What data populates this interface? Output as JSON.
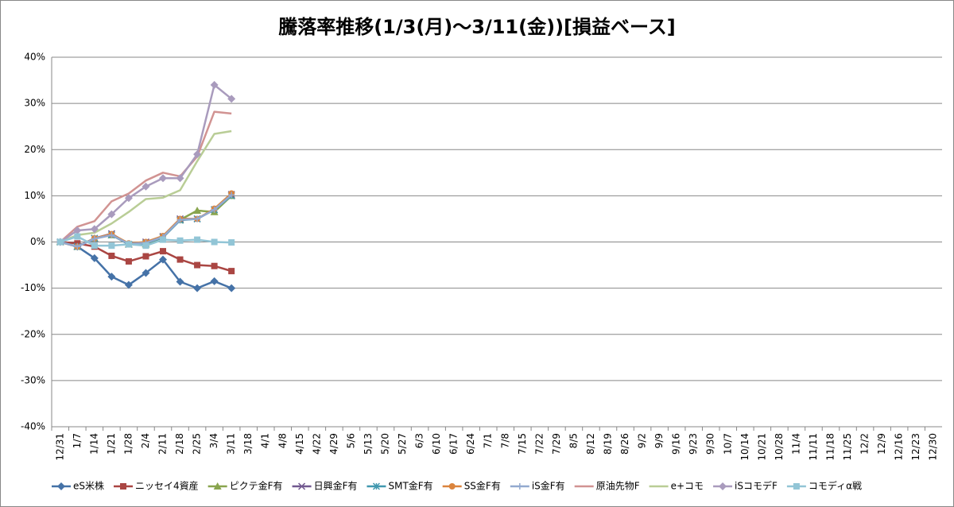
{
  "chart_data": {
    "type": "line",
    "title": "騰落率推移(1/3(月)～3/11(金))[損益ベース]",
    "categories": [
      "12/31",
      "1/7",
      "1/14",
      "1/21",
      "1/28",
      "2/4",
      "2/11",
      "2/18",
      "2/25",
      "3/4",
      "3/11",
      "3/18",
      "4/1",
      "4/8",
      "4/15",
      "4/22",
      "4/29",
      "5/6",
      "5/13",
      "5/20",
      "5/27",
      "6/3",
      "6/10",
      "6/17",
      "6/24",
      "7/1",
      "7/8",
      "7/15",
      "7/22",
      "7/29",
      "8/5",
      "8/12",
      "8/19",
      "8/26",
      "9/2",
      "9/9",
      "9/16",
      "9/23",
      "9/30",
      "10/7",
      "10/14",
      "10/21",
      "10/28",
      "11/4",
      "11/11",
      "11/18",
      "11/25",
      "12/2",
      "12/9",
      "12/16",
      "12/23",
      "12/30"
    ],
    "ylim": [
      -40,
      40
    ],
    "yticks": [
      {
        "value": -40,
        "label": "-40%"
      },
      {
        "value": -30,
        "label": "-30%"
      },
      {
        "value": -20,
        "label": "-20%"
      },
      {
        "value": -10,
        "label": "-10%"
      },
      {
        "value": 0,
        "label": "0%"
      },
      {
        "value": 10,
        "label": "10%"
      },
      {
        "value": 20,
        "label": "20%"
      },
      {
        "value": 30,
        "label": "30%"
      },
      {
        "value": 40,
        "label": "40%"
      }
    ],
    "grid": true,
    "legend": "bottom",
    "series": [
      {
        "name": "eS米株",
        "color": "#4572a7",
        "marker": "diamond",
        "values": [
          0,
          -1,
          -3.5,
          -7.5,
          -9.3,
          -6.7,
          -3.8,
          -8.6,
          -10,
          -8.5,
          -10,
          null,
          null,
          null,
          null,
          null,
          null,
          null,
          null,
          null,
          null,
          null,
          null,
          null,
          null,
          null,
          null,
          null,
          null,
          null,
          null,
          null,
          null,
          null,
          null,
          null,
          null,
          null,
          null,
          null,
          null,
          null,
          null,
          null,
          null,
          null,
          null,
          null,
          null,
          null,
          null,
          null
        ]
      },
      {
        "name": "ニッセイ4資産",
        "color": "#aa4643",
        "marker": "square",
        "values": [
          0,
          -0.3,
          -1,
          -3,
          -4.2,
          -3.1,
          -2,
          -3.8,
          -5,
          -5.2,
          -6.3,
          null,
          null,
          null,
          null,
          null,
          null,
          null,
          null,
          null,
          null,
          null,
          null,
          null,
          null,
          null,
          null,
          null,
          null,
          null,
          null,
          null,
          null,
          null,
          null,
          null,
          null,
          null,
          null,
          null,
          null,
          null,
          null,
          null,
          null,
          null,
          null,
          null,
          null,
          null,
          null,
          null
        ]
      },
      {
        "name": "ピクテ金F有",
        "color": "#89a54e",
        "marker": "triangle",
        "values": [
          0,
          -1,
          0.8,
          1.5,
          -0.5,
          -0.5,
          1,
          4.8,
          6.8,
          6.5,
          10,
          null,
          null,
          null,
          null,
          null,
          null,
          null,
          null,
          null,
          null,
          null,
          null,
          null,
          null,
          null,
          null,
          null,
          null,
          null,
          null,
          null,
          null,
          null,
          null,
          null,
          null,
          null,
          null,
          null,
          null,
          null,
          null,
          null,
          null,
          null,
          null,
          null,
          null,
          null,
          null,
          null
        ]
      },
      {
        "name": "日興金F有",
        "color": "#71588f",
        "marker": "x",
        "values": [
          0,
          -1,
          0.8,
          1.8,
          -0.5,
          0,
          1.2,
          5,
          5,
          7,
          10.3,
          null,
          null,
          null,
          null,
          null,
          null,
          null,
          null,
          null,
          null,
          null,
          null,
          null,
          null,
          null,
          null,
          null,
          null,
          null,
          null,
          null,
          null,
          null,
          null,
          null,
          null,
          null,
          null,
          null,
          null,
          null,
          null,
          null,
          null,
          null,
          null,
          null,
          null,
          null,
          null,
          null
        ]
      },
      {
        "name": "SMT金F有",
        "color": "#4198af",
        "marker": "star",
        "values": [
          0,
          -1,
          0.8,
          1.5,
          -0.5,
          -0.3,
          1,
          4.7,
          5,
          7,
          10,
          null,
          null,
          null,
          null,
          null,
          null,
          null,
          null,
          null,
          null,
          null,
          null,
          null,
          null,
          null,
          null,
          null,
          null,
          null,
          null,
          null,
          null,
          null,
          null,
          null,
          null,
          null,
          null,
          null,
          null,
          null,
          null,
          null,
          null,
          null,
          null,
          null,
          null,
          null,
          null,
          null
        ]
      },
      {
        "name": "SS金F有",
        "color": "#db843d",
        "marker": "circle",
        "values": [
          0,
          -1,
          0.8,
          1.7,
          -0.3,
          0,
          1.3,
          5,
          5,
          7.2,
          10.5,
          null,
          null,
          null,
          null,
          null,
          null,
          null,
          null,
          null,
          null,
          null,
          null,
          null,
          null,
          null,
          null,
          null,
          null,
          null,
          null,
          null,
          null,
          null,
          null,
          null,
          null,
          null,
          null,
          null,
          null,
          null,
          null,
          null,
          null,
          null,
          null,
          null,
          null,
          null,
          null,
          null
        ]
      },
      {
        "name": "iS金F有",
        "color": "#93a9cf",
        "marker": "plus",
        "values": [
          0,
          -1,
          0.7,
          1.5,
          -0.4,
          -0.2,
          1.1,
          4.8,
          5,
          7,
          10.2,
          null,
          null,
          null,
          null,
          null,
          null,
          null,
          null,
          null,
          null,
          null,
          null,
          null,
          null,
          null,
          null,
          null,
          null,
          null,
          null,
          null,
          null,
          null,
          null,
          null,
          null,
          null,
          null,
          null,
          null,
          null,
          null,
          null,
          null,
          null,
          null,
          null,
          null,
          null,
          null,
          null
        ]
      },
      {
        "name": "原油先物F",
        "color": "#d19392",
        "marker": "none",
        "values": [
          0,
          3.3,
          4.5,
          8.8,
          10.5,
          13.3,
          15,
          14.2,
          18.5,
          28.2,
          27.8,
          null,
          null,
          null,
          null,
          null,
          null,
          null,
          null,
          null,
          null,
          null,
          null,
          null,
          null,
          null,
          null,
          null,
          null,
          null,
          null,
          null,
          null,
          null,
          null,
          null,
          null,
          null,
          null,
          null,
          null,
          null,
          null,
          null,
          null,
          null,
          null,
          null,
          null,
          null,
          null,
          null
        ]
      },
      {
        "name": "e+コモ",
        "color": "#b9cd96",
        "marker": "none",
        "values": [
          0,
          1.5,
          2,
          4,
          6.5,
          9.3,
          9.6,
          11.2,
          17.5,
          23.4,
          24,
          null,
          null,
          null,
          null,
          null,
          null,
          null,
          null,
          null,
          null,
          null,
          null,
          null,
          null,
          null,
          null,
          null,
          null,
          null,
          null,
          null,
          null,
          null,
          null,
          null,
          null,
          null,
          null,
          null,
          null,
          null,
          null,
          null,
          null,
          null,
          null,
          null,
          null,
          null,
          null,
          null
        ]
      },
      {
        "name": "iSコモデF",
        "color": "#a99bbd",
        "marker": "diamond",
        "values": [
          0,
          2.5,
          2.8,
          6,
          9.5,
          12,
          13.8,
          13.8,
          19,
          34,
          31,
          null,
          null,
          null,
          null,
          null,
          null,
          null,
          null,
          null,
          null,
          null,
          null,
          null,
          null,
          null,
          null,
          null,
          null,
          null,
          null,
          null,
          null,
          null,
          null,
          null,
          null,
          null,
          null,
          null,
          null,
          null,
          null,
          null,
          null,
          null,
          null,
          null,
          null,
          null,
          null,
          null
        ]
      },
      {
        "name": "コモディα戦",
        "color": "#92c5d6",
        "marker": "square",
        "values": [
          0,
          1.2,
          -0.8,
          -0.8,
          -0.5,
          -0.8,
          0.5,
          0.3,
          0.5,
          0,
          -0.1,
          null,
          null,
          null,
          null,
          null,
          null,
          null,
          null,
          null,
          null,
          null,
          null,
          null,
          null,
          null,
          null,
          null,
          null,
          null,
          null,
          null,
          null,
          null,
          null,
          null,
          null,
          null,
          null,
          null,
          null,
          null,
          null,
          null,
          null,
          null,
          null,
          null,
          null,
          null,
          null,
          null
        ]
      }
    ]
  }
}
